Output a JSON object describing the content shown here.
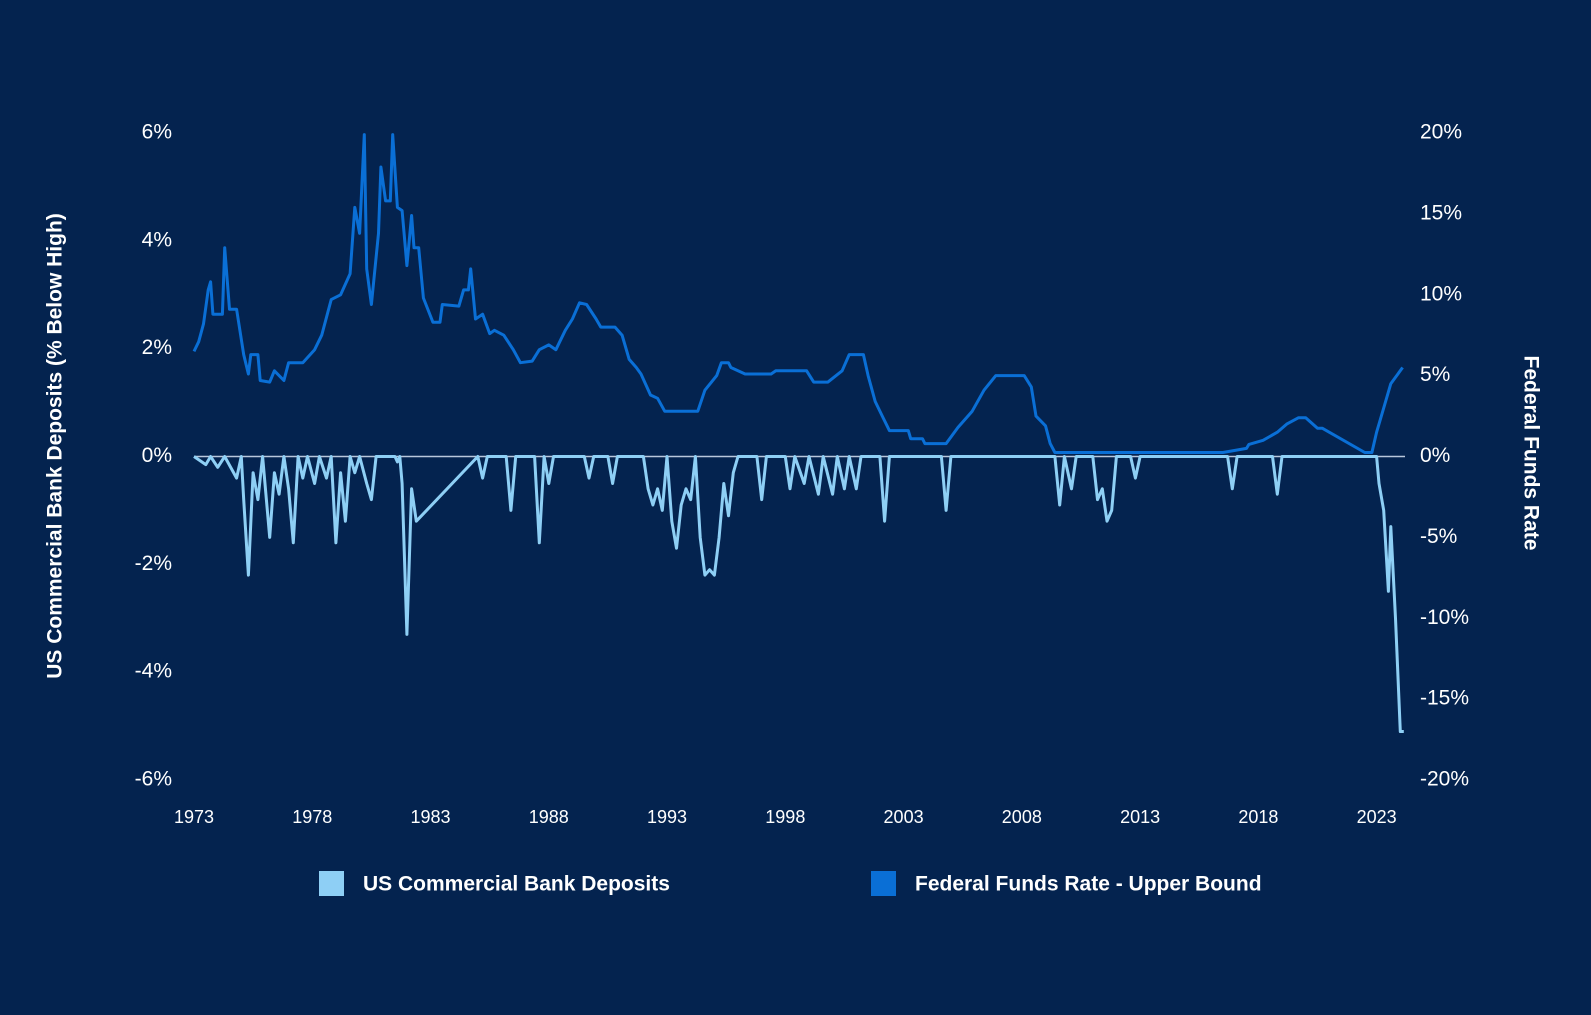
{
  "chart_data": {
    "type": "line",
    "y_label": "US Commercial Bank Deposits (% Below High)",
    "y2_label": "Federal Funds Rate",
    "xlim": [
      1973,
      2024.2
    ],
    "xticks": [
      1973,
      1978,
      1983,
      1988,
      1993,
      1998,
      2003,
      2008,
      2013,
      2018,
      2023
    ],
    "ylim": [
      -6,
      6
    ],
    "yticks": [
      {
        "value": 6,
        "label": "6%"
      },
      {
        "value": 4,
        "label": "4%"
      },
      {
        "value": 2,
        "label": "2%"
      },
      {
        "value": 0,
        "label": "0%"
      },
      {
        "value": -2,
        "label": "-2%"
      },
      {
        "value": -4,
        "label": "-4%"
      },
      {
        "value": -6,
        "label": "-6%"
      }
    ],
    "y2lim": [
      -20,
      20
    ],
    "y2ticks": [
      {
        "value": 20,
        "label": "20%"
      },
      {
        "value": 15,
        "label": "15%"
      },
      {
        "value": 10,
        "label": "10%"
      },
      {
        "value": 5,
        "label": "5%"
      },
      {
        "value": 0,
        "label": "0%"
      },
      {
        "value": -5,
        "label": "-5%"
      },
      {
        "value": -10,
        "label": "-10%"
      },
      {
        "value": -15,
        "label": "-15%"
      },
      {
        "value": -20,
        "label": "-20%"
      }
    ],
    "grid": false,
    "series": [
      {
        "name": "US Commercial Bank Deposits",
        "color": "#8ecff5",
        "axis": "y",
        "x": [
          1973.0,
          1973.5,
          1973.7,
          1974.0,
          1974.3,
          1974.8,
          1975.0,
          1975.1,
          1975.3,
          1975.5,
          1975.7,
          1975.9,
          1976.2,
          1976.4,
          1976.6,
          1976.8,
          1977.0,
          1977.2,
          1977.4,
          1977.6,
          1977.8,
          1978.1,
          1978.3,
          1978.6,
          1978.8,
          1979.0,
          1979.2,
          1979.4,
          1979.6,
          1979.8,
          1980.0,
          1980.3,
          1980.5,
          1980.7,
          1981.5,
          1981.6,
          1981.7,
          1981.8,
          1982.0,
          1982.2,
          1982.4,
          1985.0,
          1985.2,
          1985.4,
          1986.2,
          1986.4,
          1986.6,
          1987.4,
          1987.6,
          1987.8,
          1988.0,
          1988.2,
          1989.5,
          1989.7,
          1989.9,
          1990.5,
          1990.7,
          1990.9,
          1992.0,
          1992.2,
          1992.4,
          1992.6,
          1992.8,
          1993.0,
          1993.2,
          1993.4,
          1993.6,
          1993.8,
          1994.0,
          1994.2,
          1994.4,
          1994.6,
          1994.8,
          1995.0,
          1995.2,
          1995.4,
          1995.6,
          1995.8,
          1996.0,
          1996.8,
          1997.0,
          1997.2,
          1998.0,
          1998.2,
          1998.4,
          1998.8,
          1999.0,
          1999.4,
          1999.6,
          2000.0,
          2000.2,
          2000.5,
          2000.7,
          2001.0,
          2001.2,
          2002.0,
          2002.2,
          2002.4,
          2004.6,
          2004.8,
          2005.0,
          2009.4,
          2009.6,
          2009.8,
          2010.1,
          2010.3,
          2011.0,
          2011.2,
          2011.4,
          2011.6,
          2011.8,
          2012.0,
          2012.6,
          2012.8,
          2013.0,
          2016.7,
          2016.9,
          2017.1,
          2018.6,
          2018.8,
          2019.0,
          2023.0,
          2023.1,
          2023.3,
          2023.5,
          2023.6,
          2023.8,
          2024.0,
          2024.15
        ],
        "values": [
          0,
          -0.15,
          0,
          -0.2,
          0,
          -0.4,
          0,
          -0.8,
          -2.2,
          -0.3,
          -0.8,
          0,
          -1.5,
          -0.3,
          -0.7,
          0,
          -0.6,
          -1.6,
          0,
          -0.4,
          0,
          -0.5,
          0,
          -0.4,
          0,
          -1.6,
          -0.3,
          -1.2,
          0,
          -0.3,
          0,
          -0.5,
          -0.8,
          0,
          0,
          -0.1,
          0,
          -0.5,
          -3.3,
          -0.6,
          -1.2,
          0,
          -0.4,
          0,
          0,
          -1.0,
          0,
          0,
          -1.6,
          0,
          -0.5,
          0,
          0,
          -0.4,
          0,
          0,
          -0.5,
          0,
          0,
          -0.6,
          -0.9,
          -0.6,
          -1.0,
          0,
          -1.2,
          -1.7,
          -0.9,
          -0.6,
          -0.8,
          0,
          -1.5,
          -2.2,
          -2.1,
          -2.2,
          -1.5,
          -0.5,
          -1.1,
          -0.3,
          0,
          0,
          -0.8,
          0,
          0,
          -0.6,
          0,
          -0.5,
          0,
          -0.7,
          0,
          -0.7,
          0,
          -0.6,
          0,
          -0.6,
          0,
          0,
          -1.2,
          0,
          0,
          -1.0,
          0,
          0,
          -0.9,
          0,
          -0.6,
          0,
          0,
          -0.8,
          -0.6,
          -1.2,
          -1.0,
          0,
          0,
          -0.4,
          0,
          0,
          -0.6,
          0,
          0,
          -0.7,
          0,
          0,
          -0.5,
          -1.0,
          -2.5,
          -1.3,
          -3.0,
          -5.1,
          -5.1
        ]
      },
      {
        "name": "Federal Funds Rate - Upper Bound",
        "color": "#0a6fd6",
        "axis": "y2",
        "x": [
          1973.0,
          1973.2,
          1973.4,
          1973.6,
          1973.7,
          1973.8,
          1974.2,
          1974.3,
          1974.5,
          1974.8,
          1975.1,
          1975.3,
          1975.4,
          1975.7,
          1975.8,
          1976.2,
          1976.4,
          1976.8,
          1977.0,
          1977.6,
          1978.1,
          1978.4,
          1978.8,
          1979.2,
          1979.6,
          1979.8,
          1980.0,
          1980.2,
          1980.3,
          1980.5,
          1980.8,
          1980.9,
          1981.1,
          1981.3,
          1981.4,
          1981.6,
          1981.8,
          1982.0,
          1982.2,
          1982.3,
          1982.5,
          1982.7,
          1983.1,
          1983.4,
          1983.5,
          1984.2,
          1984.4,
          1984.6,
          1984.7,
          1984.9,
          1985.2,
          1985.5,
          1985.7,
          1986.1,
          1986.5,
          1986.8,
          1987.3,
          1987.6,
          1988.0,
          1988.3,
          1988.7,
          1989.0,
          1989.3,
          1989.6,
          1990.0,
          1990.2,
          1990.8,
          1991.1,
          1991.4,
          1991.7,
          1991.9,
          1992.3,
          1992.6,
          1992.9,
          1994.3,
          1994.6,
          1995.1,
          1995.3,
          1995.6,
          1995.7,
          1996.3,
          1997.4,
          1997.6,
          1998.9,
          1999.2,
          1999.8,
          2000.4,
          2000.7,
          2001.3,
          2001.5,
          2001.8,
          2002.1,
          2002.4,
          2003.2,
          2003.3,
          2003.8,
          2003.9,
          2004.8,
          2005.3,
          2005.9,
          2006.4,
          2006.9,
          2008.1,
          2008.4,
          2008.6,
          2009.0,
          2009.2,
          2009.4,
          2016.5,
          2017.5,
          2017.6,
          2018.2,
          2018.8,
          2019.2,
          2019.7,
          2020.0,
          2020.5,
          2020.7,
          2022.5,
          2022.8,
          2023.0,
          2023.3,
          2023.6,
          2023.9,
          2024.1
        ],
        "values": [
          6.5,
          7.1,
          8.2,
          10.3,
          10.8,
          8.8,
          8.8,
          12.9,
          9.1,
          9.1,
          6.3,
          5.1,
          6.3,
          6.3,
          4.7,
          4.6,
          5.3,
          4.7,
          5.8,
          5.8,
          6.6,
          7.5,
          9.7,
          10.0,
          11.3,
          15.4,
          13.8,
          19.9,
          11.6,
          9.4,
          13.8,
          17.9,
          15.8,
          15.8,
          19.9,
          15.4,
          15.2,
          11.8,
          14.9,
          12.9,
          12.9,
          9.8,
          8.3,
          8.3,
          9.4,
          9.3,
          10.3,
          10.3,
          11.6,
          8.5,
          8.8,
          7.6,
          7.8,
          7.5,
          6.6,
          5.8,
          5.9,
          6.6,
          6.9,
          6.6,
          7.8,
          8.5,
          9.5,
          9.4,
          8.5,
          8.0,
          8.0,
          7.5,
          6.0,
          5.5,
          5.1,
          3.8,
          3.6,
          2.8,
          2.8,
          4.1,
          5.0,
          5.8,
          5.8,
          5.5,
          5.1,
          5.1,
          5.3,
          5.3,
          4.6,
          4.6,
          5.3,
          6.3,
          6.3,
          5.0,
          3.4,
          2.5,
          1.6,
          1.6,
          1.1,
          1.1,
          0.8,
          0.8,
          1.8,
          2.8,
          4.1,
          5.0,
          5.0,
          4.3,
          2.5,
          1.9,
          0.8,
          0.25,
          0.25,
          0.5,
          0.75,
          1.0,
          1.5,
          2.0,
          2.4,
          2.4,
          1.75,
          1.75,
          0.25,
          0.25,
          1.5,
          3.0,
          4.5,
          5.1,
          5.5
        ]
      }
    ]
  }
}
